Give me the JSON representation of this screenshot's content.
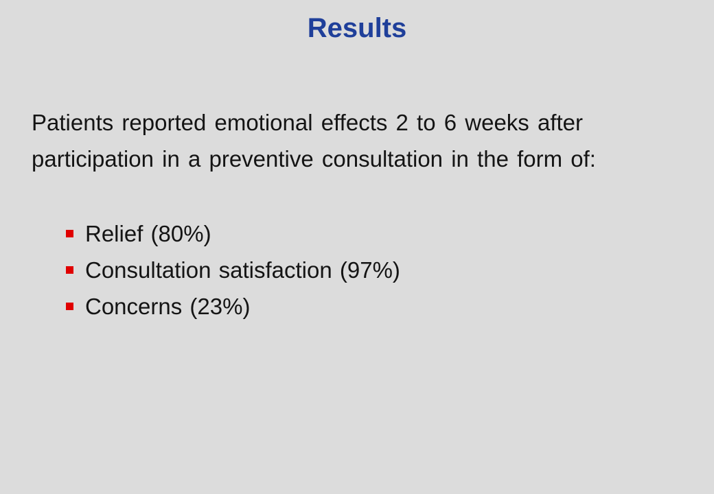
{
  "slide": {
    "title": "Results",
    "intro": "Patients reported emotional effects 2 to 6 weeks after participation in a preventive consultation in the form of:",
    "bullets": [
      {
        "text": "Relief (80%)"
      },
      {
        "text": "Consultation satisfaction (97%)"
      },
      {
        "text": "Concerns  (23%)"
      }
    ]
  },
  "colors": {
    "background": "#dcdcdc",
    "title": "#1f3f9a",
    "text": "#141414",
    "bullet_marker": "#e00000"
  },
  "icons": {
    "bullet": "square-bullet-icon"
  }
}
